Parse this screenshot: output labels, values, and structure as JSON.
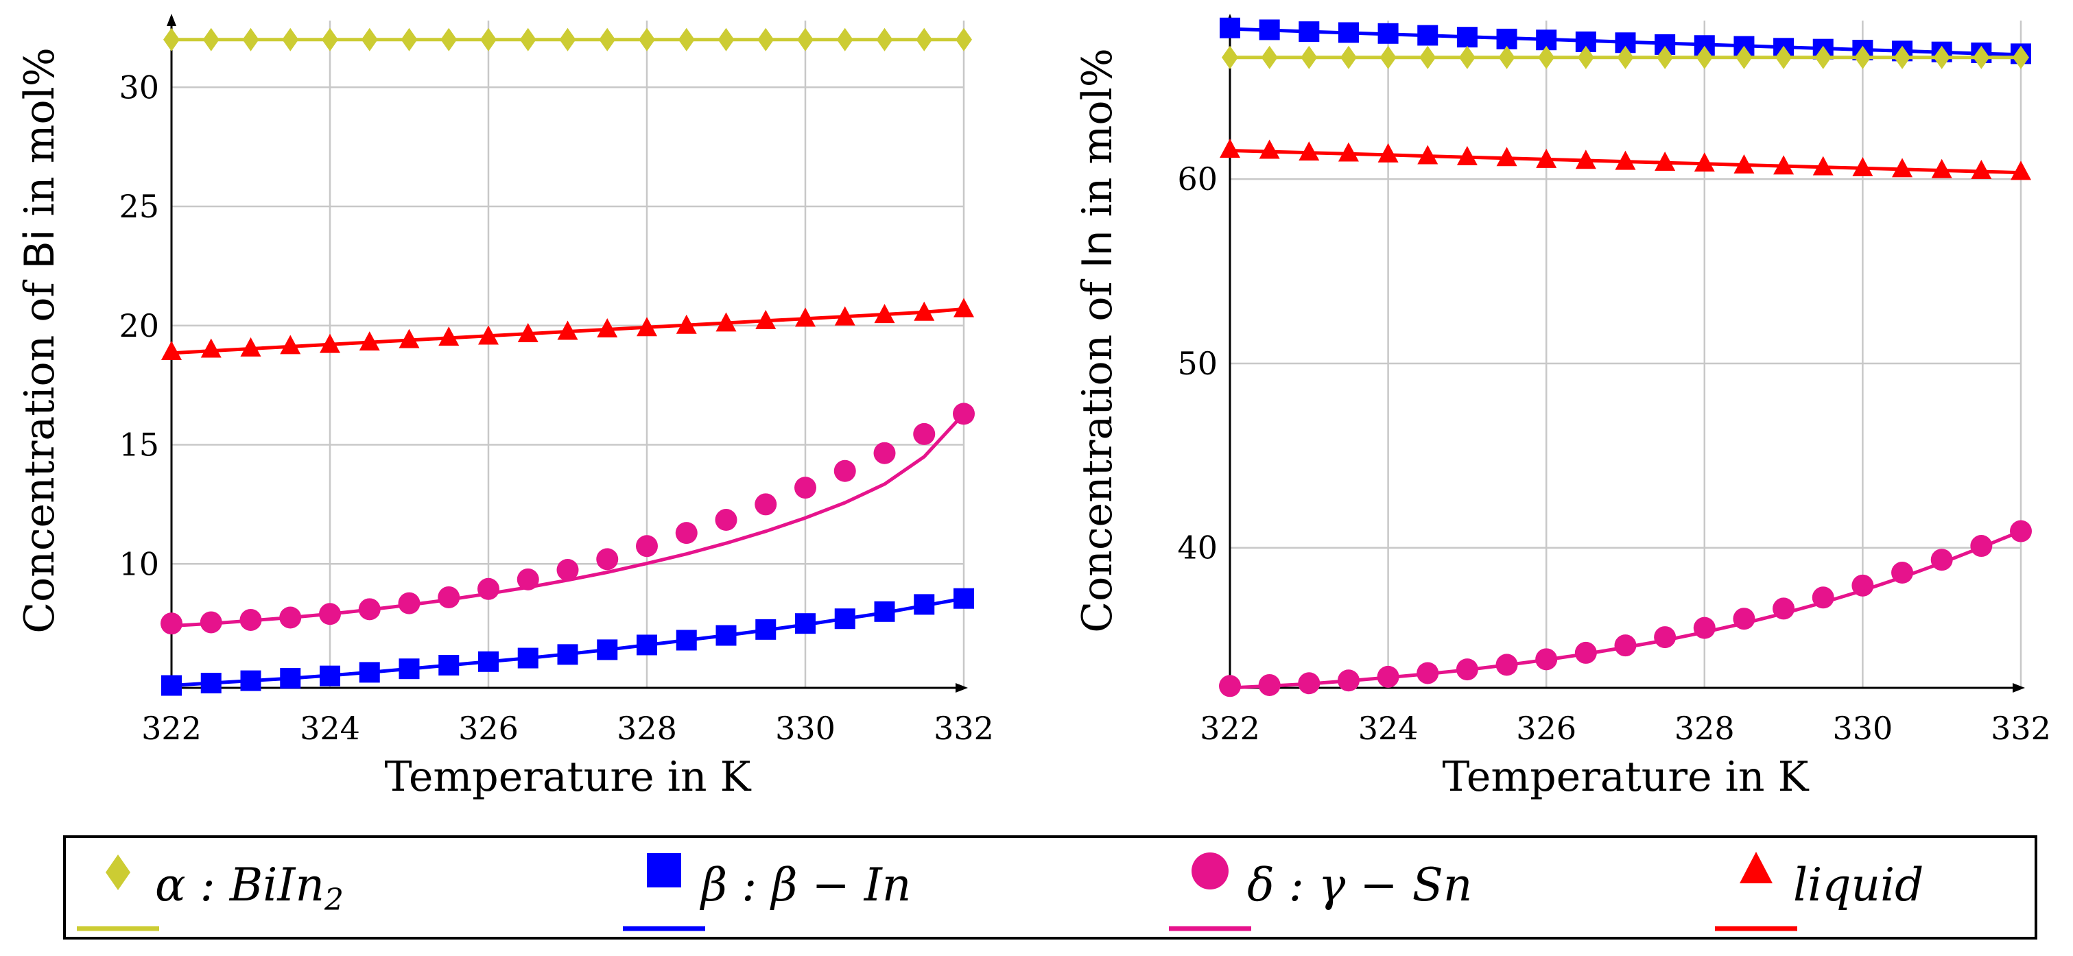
{
  "colors": {
    "alpha": "#cccc33",
    "beta": "#0000ff",
    "delta": "#e6138c",
    "liquid": "#ff0000"
  },
  "legend": [
    {
      "key": "alpha",
      "label_main": "α : BiIn",
      "label_sub": "2",
      "marker": "diamond"
    },
    {
      "key": "beta",
      "label_main": "β : β − In",
      "label_sub": "",
      "marker": "square"
    },
    {
      "key": "delta",
      "label_main": "δ : γ − Sn",
      "label_sub": "",
      "marker": "circle"
    },
    {
      "key": "liquid",
      "label_main": "liquid",
      "label_sub": "",
      "marker": "triangle"
    }
  ],
  "chart_data": [
    {
      "type": "line",
      "title": "",
      "xlabel": "Temperature in K",
      "ylabel_prefix": "Concentration of ",
      "ylabel_element": "Bi",
      "ylabel_suffix": " in mol%",
      "xlim": [
        322,
        332
      ],
      "ylim": [
        4.8,
        32.8
      ],
      "xticks": [
        322,
        324,
        326,
        328,
        330,
        332
      ],
      "yticks": [
        10,
        15,
        20,
        25,
        30
      ],
      "grid": true,
      "x": [
        322,
        322.5,
        323,
        323.5,
        324,
        324.5,
        325,
        325.5,
        326,
        326.5,
        327,
        327.5,
        328,
        328.5,
        329,
        329.5,
        330,
        330.5,
        331,
        331.5,
        332
      ],
      "series": [
        {
          "key": "alpha",
          "name": "α : BiIn2",
          "marker": "diamond",
          "values": [
            32.0,
            32.0,
            32.0,
            32.0,
            32.0,
            32.0,
            32.0,
            32.0,
            32.0,
            32.0,
            32.0,
            32.0,
            32.0,
            32.0,
            32.0,
            32.0,
            32.0,
            32.0,
            32.0,
            32.0,
            32.0
          ],
          "fit": [
            32.0,
            32.0,
            32.0,
            32.0,
            32.0,
            32.0,
            32.0,
            32.0,
            32.0,
            32.0,
            32.0,
            32.0,
            32.0,
            32.0,
            32.0,
            32.0,
            32.0,
            32.0,
            32.0,
            32.0,
            32.0
          ]
        },
        {
          "key": "beta",
          "name": "β : β − In",
          "marker": "square",
          "values": [
            4.9,
            5.0,
            5.1,
            5.2,
            5.3,
            5.45,
            5.6,
            5.75,
            5.9,
            6.05,
            6.2,
            6.4,
            6.6,
            6.8,
            7.0,
            7.25,
            7.5,
            7.7,
            8.0,
            8.3,
            8.55
          ],
          "fit": [
            4.9,
            5.0,
            5.1,
            5.2,
            5.32,
            5.45,
            5.6,
            5.75,
            5.9,
            6.05,
            6.22,
            6.4,
            6.6,
            6.8,
            7.0,
            7.22,
            7.45,
            7.7,
            7.95,
            8.25,
            8.55
          ]
        },
        {
          "key": "delta",
          "name": "δ : γ − Sn",
          "marker": "circle",
          "values": [
            7.5,
            7.55,
            7.65,
            7.75,
            7.9,
            8.1,
            8.35,
            8.6,
            8.95,
            9.35,
            9.75,
            10.2,
            10.75,
            11.3,
            11.85,
            12.5,
            13.2,
            13.9,
            14.65,
            15.45,
            16.3
          ],
          "fit": [
            7.4,
            7.5,
            7.62,
            7.75,
            7.9,
            8.08,
            8.28,
            8.5,
            8.75,
            9.02,
            9.32,
            9.65,
            10.02,
            10.42,
            10.87,
            11.37,
            11.93,
            12.57,
            13.35,
            14.5,
            16.3
          ]
        },
        {
          "key": "liquid",
          "name": "liquid",
          "marker": "triangle",
          "values": [
            18.9,
            19.0,
            19.05,
            19.15,
            19.2,
            19.3,
            19.4,
            19.5,
            19.55,
            19.65,
            19.75,
            19.85,
            19.9,
            20.0,
            20.1,
            20.2,
            20.3,
            20.35,
            20.45,
            20.55,
            20.7
          ],
          "fit": [
            18.85,
            18.94,
            19.03,
            19.12,
            19.21,
            19.3,
            19.39,
            19.48,
            19.57,
            19.66,
            19.75,
            19.84,
            19.93,
            20.02,
            20.11,
            20.2,
            20.29,
            20.38,
            20.47,
            20.56,
            20.7
          ]
        }
      ]
    },
    {
      "type": "line",
      "title": "",
      "xlabel": "Temperature in K",
      "ylabel_prefix": "Concentration of ",
      "ylabel_element": "In",
      "ylabel_suffix": " in mol%",
      "xlim": [
        322,
        332
      ],
      "ylim": [
        32.4,
        68.6
      ],
      "xticks": [
        322,
        324,
        326,
        328,
        330,
        332
      ],
      "yticks": [
        40,
        50,
        60
      ],
      "grid": true,
      "x": [
        322,
        322.5,
        323,
        323.5,
        324,
        324.5,
        325,
        325.5,
        326,
        326.5,
        327,
        327.5,
        328,
        328.5,
        329,
        329.5,
        330,
        330.5,
        331,
        331.5,
        332
      ],
      "series": [
        {
          "key": "alpha",
          "name": "α : BiIn2",
          "marker": "diamond",
          "values": [
            66.6,
            66.6,
            66.6,
            66.6,
            66.6,
            66.6,
            66.6,
            66.6,
            66.6,
            66.6,
            66.6,
            66.6,
            66.6,
            66.6,
            66.6,
            66.6,
            66.6,
            66.6,
            66.6,
            66.6,
            66.6
          ],
          "fit": [
            66.6,
            66.6,
            66.6,
            66.6,
            66.6,
            66.6,
            66.6,
            66.6,
            66.6,
            66.6,
            66.6,
            66.6,
            66.6,
            66.6,
            66.6,
            66.6,
            66.6,
            66.6,
            66.6,
            66.6,
            66.6
          ]
        },
        {
          "key": "beta",
          "name": "β : β − In",
          "marker": "square",
          "values": [
            68.2,
            68.1,
            68.0,
            67.95,
            67.9,
            67.8,
            67.7,
            67.6,
            67.55,
            67.45,
            67.4,
            67.3,
            67.25,
            67.2,
            67.1,
            67.05,
            67.0,
            66.95,
            66.9,
            66.85,
            66.8
          ],
          "fit": [
            68.15,
            68.08,
            68.0,
            67.93,
            67.86,
            67.79,
            67.72,
            67.65,
            67.58,
            67.51,
            67.44,
            67.37,
            67.3,
            67.23,
            67.16,
            67.09,
            67.02,
            66.95,
            66.88,
            66.81,
            66.75
          ]
        },
        {
          "key": "delta",
          "name": "δ : γ − Sn",
          "marker": "circle",
          "values": [
            32.5,
            32.55,
            32.65,
            32.8,
            33.0,
            33.2,
            33.4,
            33.65,
            33.95,
            34.3,
            34.7,
            35.15,
            35.65,
            36.15,
            36.7,
            37.3,
            37.95,
            38.65,
            39.35,
            40.1,
            40.9
          ],
          "fit": [
            32.4,
            32.5,
            32.62,
            32.78,
            32.96,
            33.16,
            33.38,
            33.64,
            33.92,
            34.24,
            34.6,
            34.98,
            35.42,
            35.9,
            36.44,
            37.03,
            37.68,
            38.4,
            39.18,
            40.02,
            40.9
          ]
        },
        {
          "key": "liquid",
          "name": "liquid",
          "marker": "triangle",
          "values": [
            61.6,
            61.55,
            61.45,
            61.4,
            61.35,
            61.25,
            61.2,
            61.15,
            61.05,
            61.0,
            60.95,
            60.9,
            60.85,
            60.75,
            60.7,
            60.65,
            60.6,
            60.55,
            60.5,
            60.45,
            60.4
          ],
          "fit": [
            61.55,
            61.49,
            61.43,
            61.37,
            61.31,
            61.25,
            61.19,
            61.13,
            61.07,
            61.01,
            60.95,
            60.89,
            60.83,
            60.77,
            60.71,
            60.65,
            60.59,
            60.53,
            60.47,
            60.41,
            60.35
          ]
        }
      ]
    }
  ]
}
